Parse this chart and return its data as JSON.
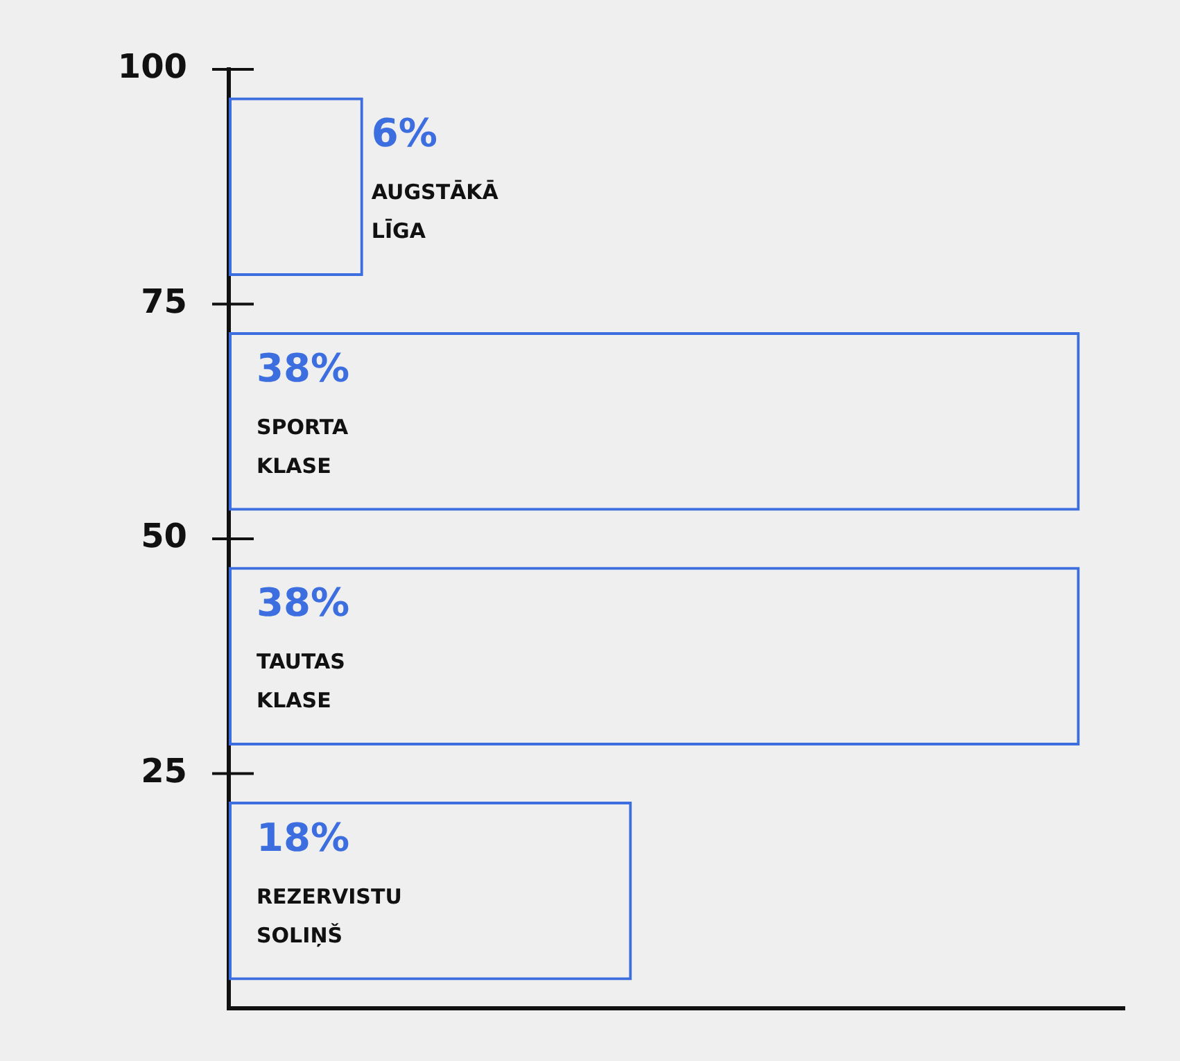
{
  "chart_data": {
    "type": "bar",
    "orientation": "horizontal",
    "categories": [
      "AUGSTĀKĀ LĪGA",
      "SPORTA KLASE",
      "TAUTAS KLASE",
      "REZERVISTU SOLIŅŠ"
    ],
    "values": [
      6,
      38,
      38,
      18
    ],
    "value_labels": [
      "6%",
      "38%",
      "38%",
      "18%"
    ],
    "color": "#3d6ee0",
    "annotations": [
      "100",
      "75",
      "50",
      "25"
    ],
    "grid": false,
    "legend": false
  }
}
